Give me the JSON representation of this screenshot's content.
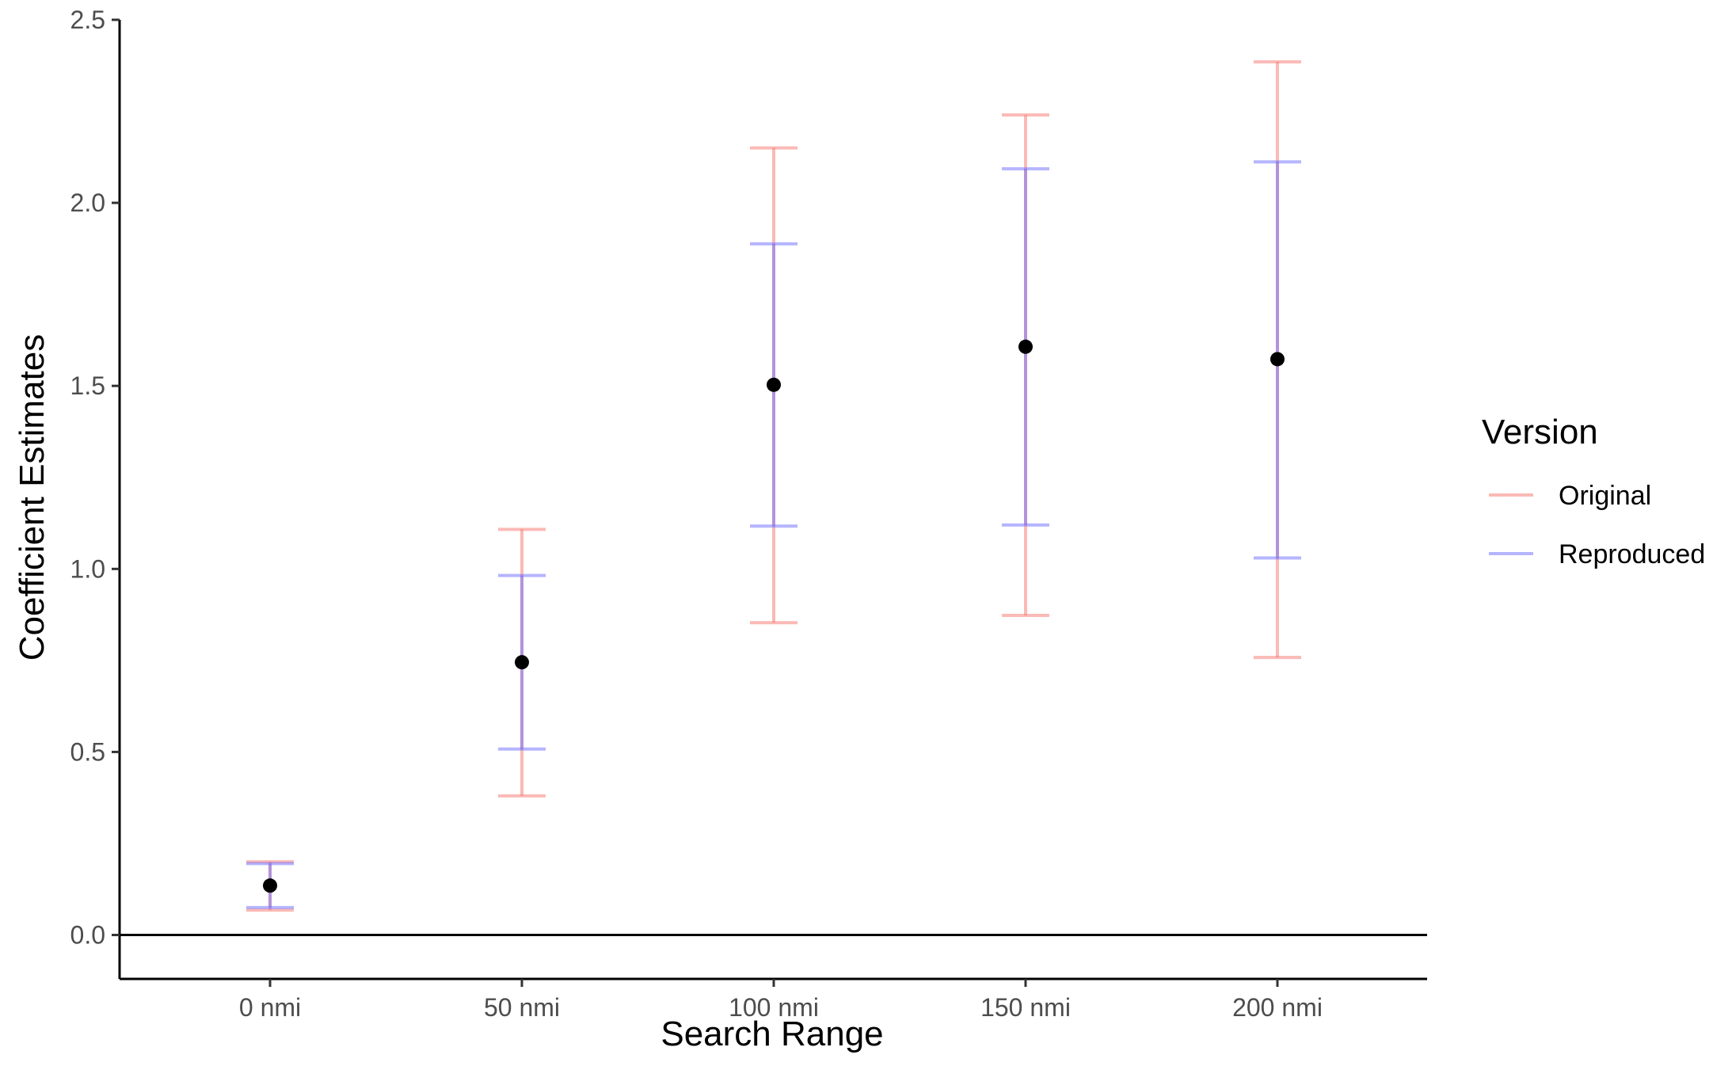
{
  "chart_data": {
    "type": "errorbar",
    "xlabel": "Search Range",
    "ylabel": "Coefficient Estimates",
    "categories": [
      "0 nmi",
      "50 nmi",
      "100 nmi",
      "150 nmi",
      "200 nmi"
    ],
    "ylim": [
      -0.12,
      2.5
    ],
    "yticks": [
      "0.0",
      "0.5",
      "1.0",
      "1.5",
      "2.0",
      "2.5"
    ],
    "ytick_values": [
      0.0,
      0.5,
      1.0,
      1.5,
      2.0,
      2.5
    ],
    "reference_line": 0,
    "points": [
      0.135,
      0.745,
      1.503,
      1.607,
      1.573
    ],
    "series": [
      {
        "name": "Original",
        "color": "#f8766d",
        "lower": [
          0.068,
          0.38,
          0.853,
          0.873,
          0.758
        ],
        "upper": [
          0.2,
          1.108,
          2.15,
          2.24,
          2.385
        ]
      },
      {
        "name": "Reproduced",
        "color": "#6b6bff",
        "lower": [
          0.075,
          0.508,
          1.117,
          1.12,
          1.03
        ],
        "upper": [
          0.195,
          0.982,
          1.888,
          2.093,
          2.112
        ]
      }
    ],
    "legend": {
      "title": "Version",
      "placement": "right"
    },
    "grid": false
  }
}
